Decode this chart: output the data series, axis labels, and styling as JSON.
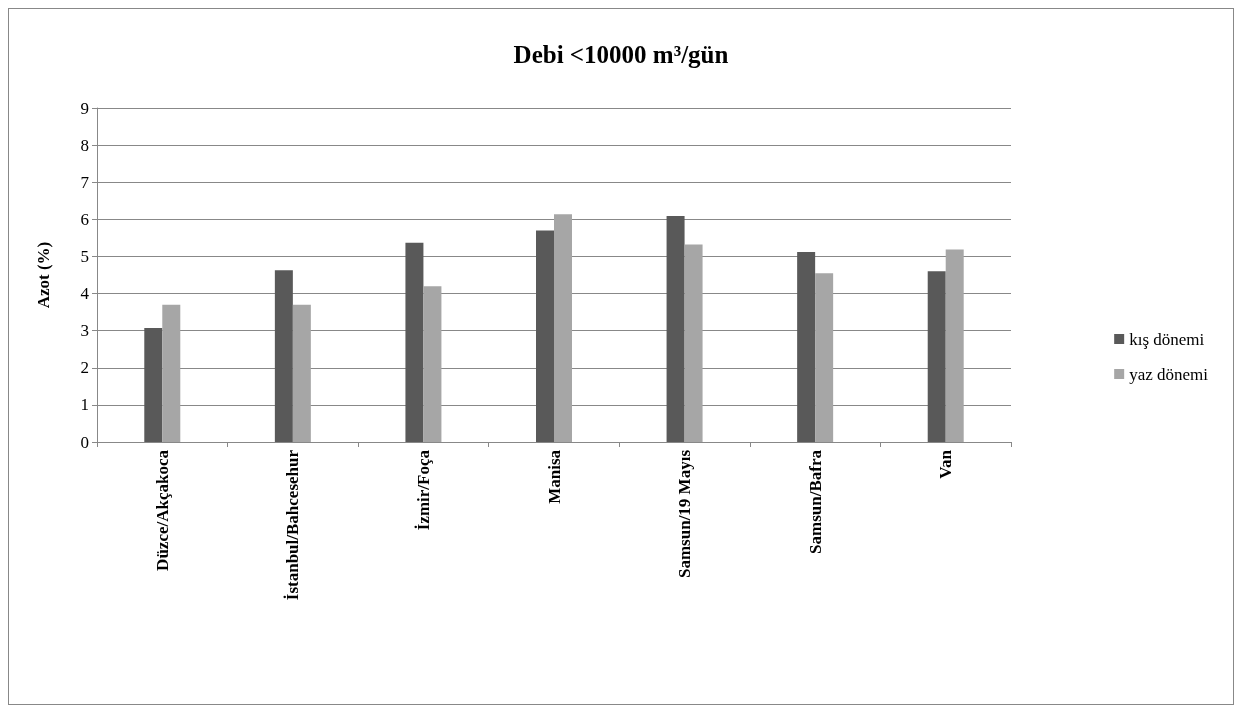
{
  "chart_data": {
    "type": "bar",
    "title": "Debi <10000 m³/gün",
    "ylabel": "Azot (%)",
    "categories": [
      "Düzce/Akçakoca",
      "İstanbul/Bahcesehur",
      "İzmir/Foça",
      "Manisa",
      "Samsun/19 Mayıs",
      "Samsun/Bafra",
      "Van"
    ],
    "series": [
      {
        "name": "kış dönemi",
        "color": "#595959",
        "values": [
          3.07,
          4.63,
          5.37,
          5.7,
          6.09,
          5.12,
          4.6
        ]
      },
      {
        "name": "yaz dönemi",
        "color": "#a6a6a6",
        "values": [
          3.7,
          3.7,
          4.2,
          6.14,
          5.32,
          4.55,
          5.19
        ]
      }
    ],
    "ylim": [
      0,
      9
    ],
    "yticks": [
      0,
      1,
      2,
      3,
      4,
      5,
      6,
      7,
      8,
      9
    ],
    "grid": "y",
    "legend": "right"
  }
}
